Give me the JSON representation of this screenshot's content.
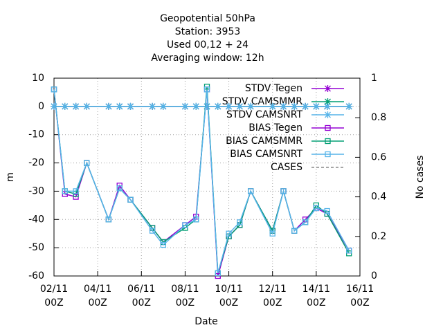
{
  "chart_data": {
    "type": "line",
    "title": [
      "Geopotential 50hPa",
      "Station:     3953",
      "Used  00,12  + 24",
      "Averaging window: 12h"
    ],
    "xlabel": "Date",
    "ylabel": "m",
    "y2label": "No cases",
    "x": [
      "02/11 00Z",
      "02/11 12Z",
      "03/11 00Z",
      "03/11 12Z",
      "04/11 12Z",
      "05/11 00Z",
      "05/11 12Z",
      "06/11 12Z",
      "07/11 00Z",
      "08/11 00Z",
      "08/11 12Z",
      "09/11 00Z",
      "09/11 12Z",
      "10/11 00Z",
      "10/11 12Z",
      "11/11 00Z",
      "12/11 00Z",
      "12/11 12Z",
      "13/11 00Z",
      "13/11 12Z",
      "14/11 00Z",
      "14/11 12Z",
      "15/11 12Z"
    ],
    "xlim": [
      "02/11 00Z",
      "16/11 00Z"
    ],
    "xticks": [
      "02/11 00Z",
      "04/11 00Z",
      "06/11 00Z",
      "08/11 00Z",
      "10/11 00Z",
      "12/11 00Z",
      "14/11 00Z",
      "16/11 00Z"
    ],
    "ylim": [
      -60,
      10
    ],
    "yticks": [
      -60,
      -50,
      -40,
      -30,
      -20,
      -10,
      0,
      10
    ],
    "y2lim": [
      0,
      1
    ],
    "y2ticks": [
      0,
      0.2,
      0.4,
      0.6,
      0.8,
      1
    ],
    "grid": true,
    "legend": "upper right",
    "series": [
      {
        "name": "STDV Tegen",
        "color": "#9400d3",
        "marker": "star",
        "values": [
          0,
          0,
          0,
          0,
          0,
          0,
          0,
          0,
          0,
          0,
          0,
          0,
          0,
          0,
          0,
          0,
          0,
          0,
          0,
          0,
          0,
          0,
          0
        ]
      },
      {
        "name": "STDV CAMSMMR",
        "color": "#009e73",
        "marker": "star",
        "values": [
          0,
          0,
          0,
          0,
          0,
          0,
          0,
          0,
          0,
          0,
          0,
          0,
          0,
          0,
          0,
          0,
          0,
          0,
          0,
          0,
          0,
          0,
          0
        ]
      },
      {
        "name": "STDV CAMSNRT",
        "color": "#56b4e9",
        "marker": "star",
        "values": [
          0,
          0,
          0,
          0,
          0,
          0,
          0,
          0,
          0,
          0,
          0,
          0,
          0,
          0,
          0,
          0,
          0,
          0,
          0,
          0,
          0,
          0,
          0
        ]
      },
      {
        "name": "BIAS Tegen",
        "color": "#9400d3",
        "marker": "square",
        "values": [
          6,
          -31,
          -32,
          -20,
          -40,
          -28,
          -33,
          -43,
          -48,
          -42,
          -39,
          6,
          -60,
          -46,
          -42,
          -30,
          -44,
          -30,
          -44,
          -40,
          -36,
          -38,
          -51
        ]
      },
      {
        "name": "BIAS CAMSMMR",
        "color": "#009e73",
        "marker": "square",
        "values": [
          6,
          -30,
          -31,
          -20,
          -40,
          -29,
          -33,
          -43,
          -48,
          -43,
          -40,
          7,
          -59,
          -46,
          -42,
          -30,
          -44,
          -30,
          -44,
          -41,
          -35,
          -38,
          -52
        ]
      },
      {
        "name": "BIAS CAMSNRT",
        "color": "#56b4e9",
        "marker": "square",
        "values": [
          6,
          -30,
          -30,
          -20,
          -40,
          -29,
          -33,
          -44,
          -49,
          -42,
          -40,
          6,
          -59,
          -45,
          -41,
          -30,
          -45,
          -30,
          -44,
          -41,
          -36,
          -37,
          -51
        ]
      },
      {
        "name": "CASES",
        "color": "#888888",
        "marker": "none",
        "dash": true,
        "axis": "y2",
        "values": [
          null,
          null,
          null,
          null,
          null,
          null,
          null,
          null,
          null,
          null,
          null,
          null,
          null,
          null,
          null,
          null,
          null,
          null,
          null,
          null,
          null,
          null,
          null
        ]
      }
    ]
  }
}
